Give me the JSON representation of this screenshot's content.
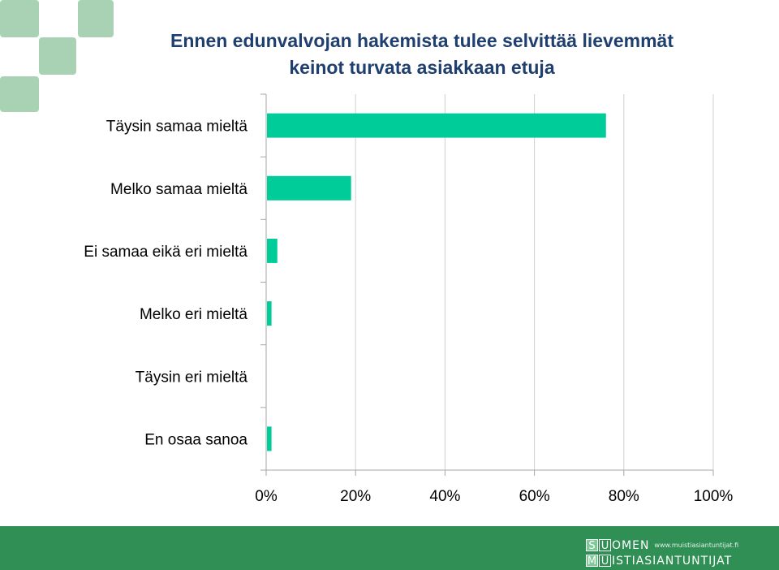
{
  "chart_data": {
    "type": "bar",
    "orientation": "horizontal",
    "title_lines": [
      "Ennen edunvalvojan hakemista tulee selvittää lievemmät",
      "keinot turvata asiakkaan etuja"
    ],
    "categories": [
      "Täysin samaa mieltä",
      "Melko samaa mieltä",
      "Ei samaa eikä eri mieltä",
      "Melko eri mieltä",
      "Täysin eri mieltä",
      "En osaa sanoa"
    ],
    "values": [
      0.76,
      0.19,
      0.025,
      0.012,
      0.0,
      0.012
    ],
    "xlim": [
      0,
      1
    ],
    "ticks": [
      0,
      0.2,
      0.4,
      0.6,
      0.8,
      1.0
    ],
    "tick_labels": [
      "0%",
      "20%",
      "40%",
      "60%",
      "80%",
      "100%"
    ],
    "gridlines": "vertical",
    "legend": "none",
    "bar_color": "#00cc99"
  },
  "footer": {
    "logo": {
      "row1_letters": [
        "S",
        "U"
      ],
      "row1_text": "OMEN",
      "row1_url": "www.muistiasiantuntijat.fi",
      "row2_letters": [
        "M",
        "U"
      ],
      "row2_text": "ISTIASIANTUNTIJAT"
    },
    "color": "#2f8f55"
  },
  "decoration": {
    "square_color": "#a9d1b3"
  }
}
